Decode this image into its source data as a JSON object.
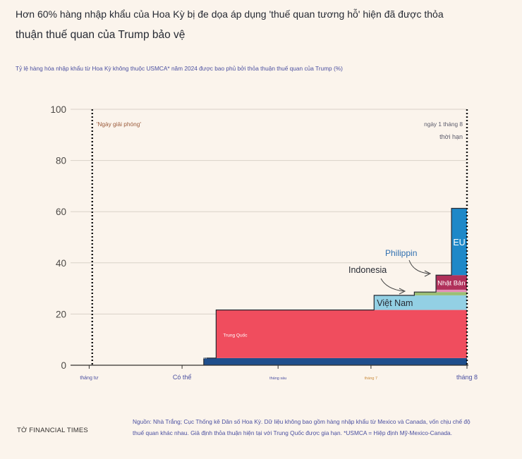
{
  "title_line1": "Hơn 60% hàng nhập khẩu của Hoa Kỳ bị đe dọa áp dụng 'thuế quan tương hỗ' hiện đã được thỏa",
  "title_line2": "thuận thuế quan của Trump bảo vệ",
  "subtitle": "Tỷ lệ hàng hóa nhập khẩu từ Hoa Kỳ không thuộc USMCA* năm 2024 được bao phủ bởi thỏa thuận thuế quan của Trump (%)",
  "footer": {
    "brand": "TỜ FINANCIAL TIMES",
    "source_line1": "Nguồn: Nhà Trắng; Cục Thống kê Dân số Hoa Kỳ. Dữ liệu không bao gồm hàng nhập khẩu từ Mexico và Canada, vốn chịu chế độ",
    "source_line2": "thuế quan khác nhau. Giả định thỏa thuận hiện tại với Trung Quốc được gia hạn. *USMCA = Hiệp định Mỹ-Mexico-Canada."
  },
  "colors": {
    "background": "#fbf4ec",
    "uk": "#1f4e8c",
    "china": "#f04d5e",
    "vietnam": "#93d0e4",
    "indonesia": "#9bbf75",
    "philippines": "#e58fb8",
    "japan": "#b0305a",
    "eu": "#1e88c8",
    "grid": "#d9d1c8",
    "axis": "#33302e",
    "event_line": "#111111"
  },
  "chart_data": {
    "type": "area",
    "title": "Hơn 60% hàng nhập khẩu của Hoa Kỳ bị đe dọa áp dụng 'thuế quan tương hỗ' hiện đã được thỏa thuận thuế quan của Trump bảo vệ",
    "ylabel": "",
    "xlabel": "",
    "ylim": [
      0,
      100
    ],
    "yticks": [
      0,
      20,
      40,
      60,
      80,
      100
    ],
    "grid": true,
    "xlim": [
      "2025-03-31",
      "2025-08-01"
    ],
    "x_ticks": [
      {
        "date": "2025-04-01",
        "label": "tháng tư"
      },
      {
        "date": "2025-05-01",
        "label": "Có thể"
      },
      {
        "date": "2025-06-01",
        "label": "tháng sáu"
      },
      {
        "date": "2025-07-01",
        "label": "tháng 7"
      },
      {
        "date": "2025-08-01",
        "label": "tháng 8"
      }
    ],
    "events": [
      {
        "date": "2025-04-02",
        "label": "'Ngày giải phóng'"
      },
      {
        "date": "2025-08-01",
        "label": "ngày 1 tháng 8",
        "label2": "thời hạn"
      }
    ],
    "series": [
      {
        "name": "Anh",
        "start": "2025-05-08",
        "value": 2.8,
        "color": "uk"
      },
      {
        "name": "Trung Quốc",
        "start": "2025-05-12",
        "value": 18.8,
        "color": "china"
      },
      {
        "name": "Việt Nam",
        "start": "2025-07-02",
        "value": 5.7,
        "color": "vietnam"
      },
      {
        "name": "Indonesia",
        "start": "2025-07-15",
        "value": 1.3,
        "color": "indonesia"
      },
      {
        "name": "Philippin",
        "start": "2025-07-22",
        "value": 0.9,
        "color": "philippines"
      },
      {
        "name": "Nhật Bản",
        "start": "2025-07-22",
        "value": 5.7,
        "color": "japan"
      },
      {
        "name": "EU",
        "start": "2025-07-27",
        "value": 26.1,
        "color": "eu"
      }
    ]
  }
}
